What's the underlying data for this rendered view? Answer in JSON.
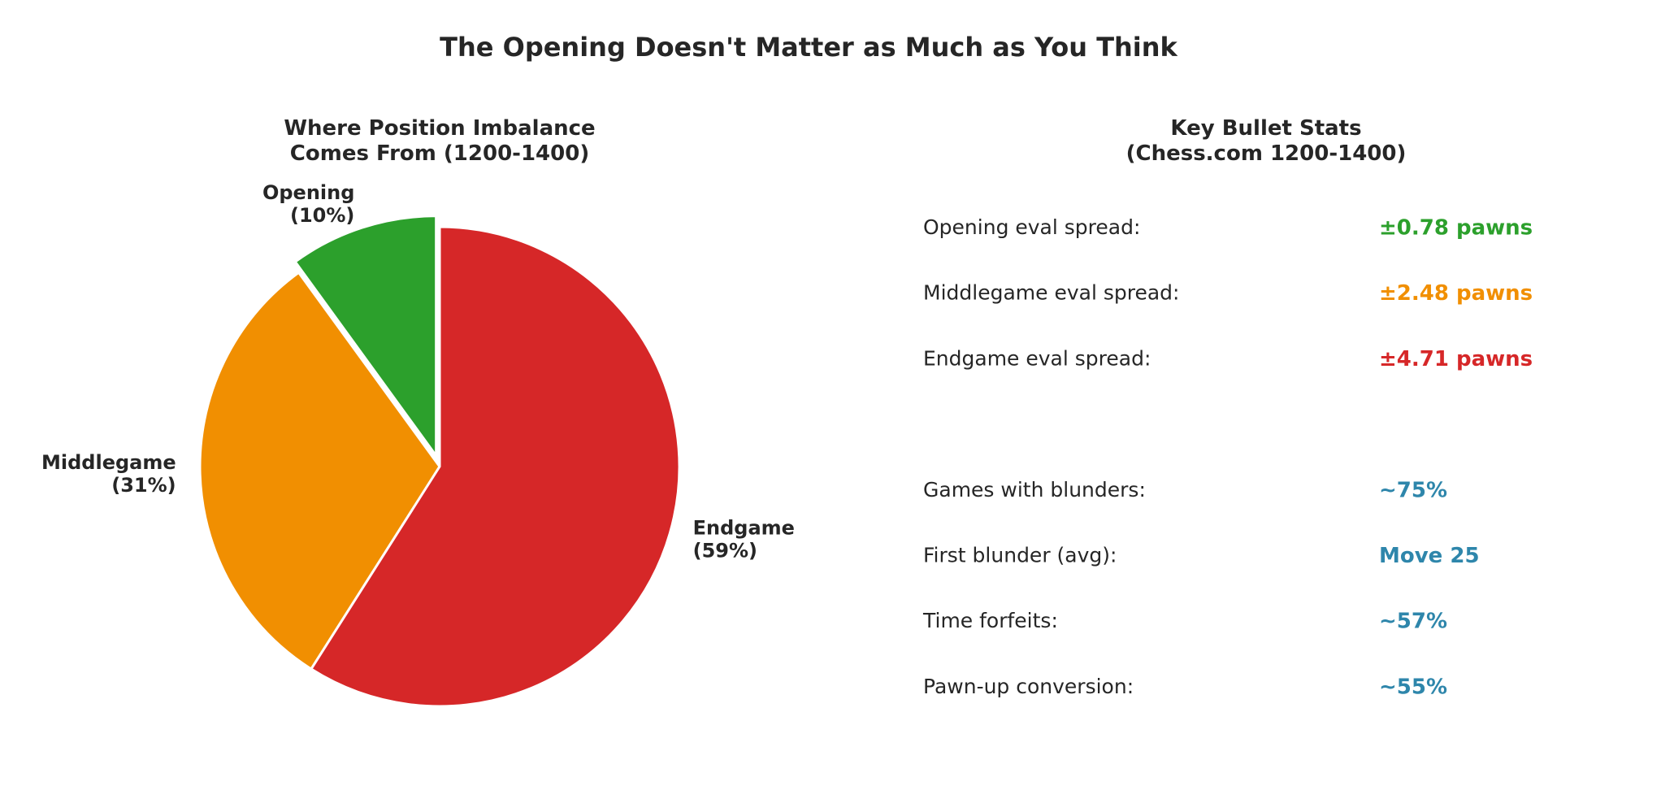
{
  "title": "The Opening Doesn't Matter as Much as You Think",
  "chart_data": {
    "type": "pie",
    "title": "Where Position Imbalance\nComes From (1200-1400)",
    "categories": [
      "Opening",
      "Middlegame",
      "Endgame"
    ],
    "values": [
      10,
      31,
      59
    ],
    "value_labels": [
      "(10%)",
      "(31%)",
      "(59%)"
    ],
    "colors": [
      "#2ca02c",
      "#f18f01",
      "#d62728"
    ],
    "start_angle": 90,
    "explode": [
      true,
      false,
      false
    ]
  },
  "stats": {
    "title": "Key Bullet Stats\n(Chess.com 1200-1400)",
    "groups": [
      [
        {
          "label": "Opening eval spread:",
          "value": "±0.78 pawns",
          "color": "#2ca02c"
        },
        {
          "label": "Middlegame eval spread:",
          "value": "±2.48 pawns",
          "color": "#f18f01"
        },
        {
          "label": "Endgame eval spread:",
          "value": "±4.71 pawns",
          "color": "#d62728"
        }
      ],
      [
        {
          "label": "Games with blunders:",
          "value": "~75%",
          "color": "#2e86ab"
        },
        {
          "label": "First blunder (avg):",
          "value": "Move 25",
          "color": "#2e86ab"
        },
        {
          "label": "Time forfeits:",
          "value": "~57%",
          "color": "#2e86ab"
        },
        {
          "label": "Pawn-up conversion:",
          "value": "~55%",
          "color": "#2e86ab"
        }
      ]
    ]
  }
}
